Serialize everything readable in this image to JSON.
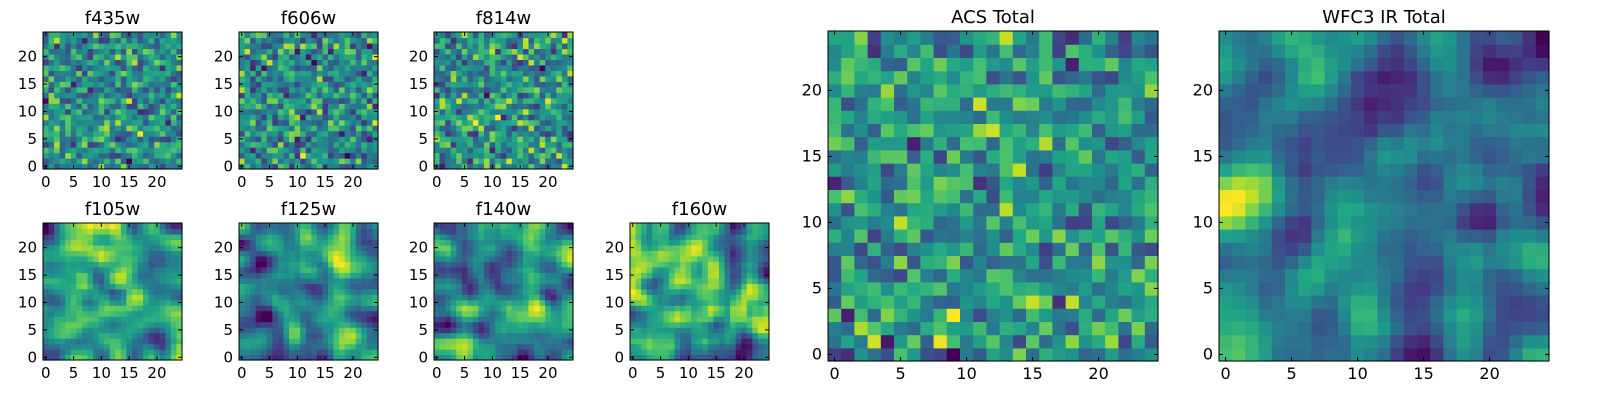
{
  "chart_data": [
    {
      "type": "heatmap",
      "id": "f435w",
      "title": "f435w",
      "grid_size": 25,
      "xticks": [
        0,
        5,
        10,
        15,
        20
      ],
      "yticks": [
        0,
        5,
        10,
        15,
        20
      ],
      "xlim": [
        -0.5,
        24.5
      ],
      "ylim": [
        -0.5,
        24.5
      ],
      "texture": "noise",
      "seed": 11,
      "colormap": "viridis"
    },
    {
      "type": "heatmap",
      "id": "f606w",
      "title": "f606w",
      "grid_size": 25,
      "xticks": [
        0,
        5,
        10,
        15,
        20
      ],
      "yticks": [
        0,
        5,
        10,
        15,
        20
      ],
      "xlim": [
        -0.5,
        24.5
      ],
      "ylim": [
        -0.5,
        24.5
      ],
      "texture": "noise",
      "seed": 23,
      "colormap": "viridis"
    },
    {
      "type": "heatmap",
      "id": "f814w",
      "title": "f814w",
      "grid_size": 25,
      "xticks": [
        0,
        5,
        10,
        15,
        20
      ],
      "yticks": [
        0,
        5,
        10,
        15,
        20
      ],
      "xlim": [
        -0.5,
        24.5
      ],
      "ylim": [
        -0.5,
        24.5
      ],
      "texture": "noise",
      "seed": 37,
      "colormap": "viridis"
    },
    {
      "type": "heatmap",
      "id": "f105w",
      "title": "f105w",
      "grid_size": 25,
      "xticks": [
        0,
        5,
        10,
        15,
        20
      ],
      "yticks": [
        0,
        5,
        10,
        15,
        20
      ],
      "xlim": [
        -0.5,
        24.5
      ],
      "ylim": [
        -0.5,
        24.5
      ],
      "texture": "smooth",
      "seed": 41,
      "colormap": "viridis"
    },
    {
      "type": "heatmap",
      "id": "f125w",
      "title": "f125w",
      "grid_size": 25,
      "xticks": [
        0,
        5,
        10,
        15,
        20
      ],
      "yticks": [
        0,
        5,
        10,
        15,
        20
      ],
      "xlim": [
        -0.5,
        24.5
      ],
      "ylim": [
        -0.5,
        24.5
      ],
      "texture": "smooth",
      "seed": 53,
      "colormap": "viridis"
    },
    {
      "type": "heatmap",
      "id": "f140w",
      "title": "f140w",
      "grid_size": 25,
      "xticks": [
        0,
        5,
        10,
        15,
        20
      ],
      "yticks": [
        0,
        5,
        10,
        15,
        20
      ],
      "xlim": [
        -0.5,
        24.5
      ],
      "ylim": [
        -0.5,
        24.5
      ],
      "texture": "smooth",
      "seed": 67,
      "colormap": "viridis"
    },
    {
      "type": "heatmap",
      "id": "f160w",
      "title": "f160w",
      "grid_size": 25,
      "xticks": [
        0,
        5,
        10,
        15,
        20
      ],
      "yticks": [
        0,
        5,
        10,
        15,
        20
      ],
      "xlim": [
        -0.5,
        24.5
      ],
      "ylim": [
        -0.5,
        24.5
      ],
      "texture": "smooth",
      "seed": 79,
      "colormap": "viridis"
    },
    {
      "type": "heatmap",
      "id": "acs-total",
      "title": "ACS Total",
      "grid_size": 25,
      "xticks": [
        0,
        5,
        10,
        15,
        20
      ],
      "yticks": [
        0,
        5,
        10,
        15,
        20
      ],
      "xlim": [
        -0.5,
        24.5
      ],
      "ylim": [
        -0.5,
        24.5
      ],
      "texture": "noise",
      "seed": 97,
      "colormap": "viridis"
    },
    {
      "type": "heatmap",
      "id": "wfc3-total",
      "title": "WFC3 IR Total",
      "grid_size": 25,
      "xticks": [
        0,
        5,
        10,
        15,
        20
      ],
      "yticks": [
        0,
        5,
        10,
        15,
        20
      ],
      "xlim": [
        -0.5,
        24.5
      ],
      "ylim": [
        -0.5,
        24.5
      ],
      "texture": "smooth",
      "seed": 101,
      "colormap": "viridis"
    }
  ]
}
